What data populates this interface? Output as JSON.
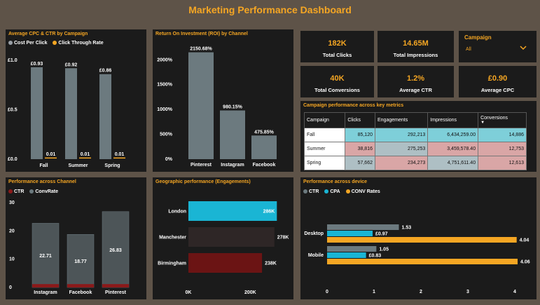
{
  "header": {
    "title": "Marketing Performance Dashboard"
  },
  "cpc_ctr": {
    "title": "Average CPC & CTR by Campaign",
    "legend": [
      "Cost Per Click",
      "Click Through Rate"
    ],
    "colors": {
      "cpc": "#6c7a7f",
      "ctr": "#f5a623",
      "legend_cpc": "#9aa0a6"
    },
    "axis_labels": [
      "£1.0",
      "£0.5",
      "£0.0"
    ],
    "chart_data": {
      "type": "bar",
      "categories": [
        "Fall",
        "Summer",
        "Spring"
      ],
      "series": [
        {
          "name": "Cost Per Click",
          "values": [
            0.93,
            0.92,
            0.86
          ],
          "labels": [
            "£0.93",
            "£0.92",
            "£0.86"
          ]
        },
        {
          "name": "Click Through Rate",
          "values": [
            0.01,
            0.01,
            0.01
          ],
          "labels": [
            "0.01",
            "0.01",
            "0.01"
          ]
        }
      ],
      "ylim": [
        0,
        1.0
      ]
    }
  },
  "roi": {
    "title": "Return On Investment (ROI) by Channel",
    "axis_labels": [
      "2000%",
      "1500%",
      "1000%",
      "500%",
      "0%"
    ],
    "chart_data": {
      "type": "bar",
      "categories": [
        "Pinterest",
        "Instagram",
        "Facebook"
      ],
      "values": [
        2150.68,
        980.15,
        475.85
      ],
      "labels": [
        "2150.68%",
        "980.15%",
        "475.85%"
      ],
      "ylim": [
        0,
        2300
      ]
    }
  },
  "kpis": [
    {
      "value": "182K",
      "label": "Total Clicks"
    },
    {
      "value": "14.65M",
      "label": "Total Impressions"
    },
    {
      "value": "40K",
      "label": "Total Conversions"
    },
    {
      "value": "1.2%",
      "label": "Average CTR"
    },
    {
      "value": "£0.90",
      "label": "Average CPC"
    }
  ],
  "slicer": {
    "title": "Campaign",
    "value": "All"
  },
  "metrics_table": {
    "title": "Campaign performance across key metrics",
    "columns": [
      "Campaign",
      "Clicks",
      "Engagements",
      "Impressions",
      "Conversions"
    ],
    "rows": [
      {
        "campaign": "Fall",
        "clicks": "85,120",
        "engagements": "292,213",
        "impressions": "6,434,259.00",
        "conversions": "14,886"
      },
      {
        "campaign": "Summer",
        "clicks": "38,816",
        "engagements": "275,253",
        "impressions": "3,459,578.40",
        "conversions": "12,753"
      },
      {
        "campaign": "Spring",
        "clicks": "57,662",
        "engagements": "234,273",
        "impressions": "4,751,611.40",
        "conversions": "12,613"
      }
    ],
    "colors": {
      "high": "#7ecfd9",
      "low": "#d9a6a6",
      "mid": "#aebfc4"
    }
  },
  "channel_perf": {
    "title": "Performance across Channel",
    "legend": [
      "CTR",
      "ConvRate"
    ],
    "colors": {
      "ctr": "#8b1a1a",
      "conv": "#4d5558"
    },
    "axis_labels": [
      "30",
      "20",
      "10",
      "0"
    ],
    "chart_data": {
      "type": "bar",
      "categories": [
        "Instagram",
        "Facebook",
        "Pinterest"
      ],
      "series": [
        {
          "name": "CTR",
          "values": [
            1.2,
            1.2,
            1.2
          ]
        },
        {
          "name": "ConvRate",
          "values": [
            22.71,
            18.77,
            26.83
          ],
          "labels": [
            "22.71",
            "18.77",
            "26.83"
          ]
        }
      ],
      "ylim": [
        0,
        30
      ]
    }
  },
  "geo": {
    "title": "Geographic performance (Engagements)",
    "axis_labels": [
      "0K",
      "200K"
    ],
    "colors": [
      "#1ab5d4",
      "#2e2626",
      "#6b1414"
    ],
    "chart_data": {
      "type": "bar",
      "categories": [
        "London",
        "Manchester",
        "Birmingham"
      ],
      "values": [
        286,
        278,
        238
      ],
      "labels": [
        "286K",
        "278K",
        "238K"
      ],
      "xlim": [
        0,
        300
      ]
    }
  },
  "device": {
    "title": "Performance across device",
    "legend": [
      "CTR",
      "CPA",
      "CONV Rates"
    ],
    "colors": {
      "ctr": "#6c7a7f",
      "cpa": "#1ab5d4",
      "conv": "#f5a623"
    },
    "axis_labels": [
      "0",
      "1",
      "2",
      "3",
      "4"
    ],
    "chart_data": {
      "type": "bar",
      "categories": [
        "Desktop",
        "Mobile"
      ],
      "series": [
        {
          "name": "CTR",
          "values": [
            1.53,
            1.05
          ],
          "labels": [
            "1.53",
            "1.05"
          ]
        },
        {
          "name": "CPA",
          "values": [
            0.97,
            0.83
          ],
          "labels": [
            "£0.97",
            "£0.83"
          ]
        },
        {
          "name": "CONV Rates",
          "values": [
            4.04,
            4.06
          ],
          "labels": [
            "4.04",
            "4.06"
          ]
        }
      ],
      "xlim": [
        0,
        4.2
      ]
    }
  }
}
